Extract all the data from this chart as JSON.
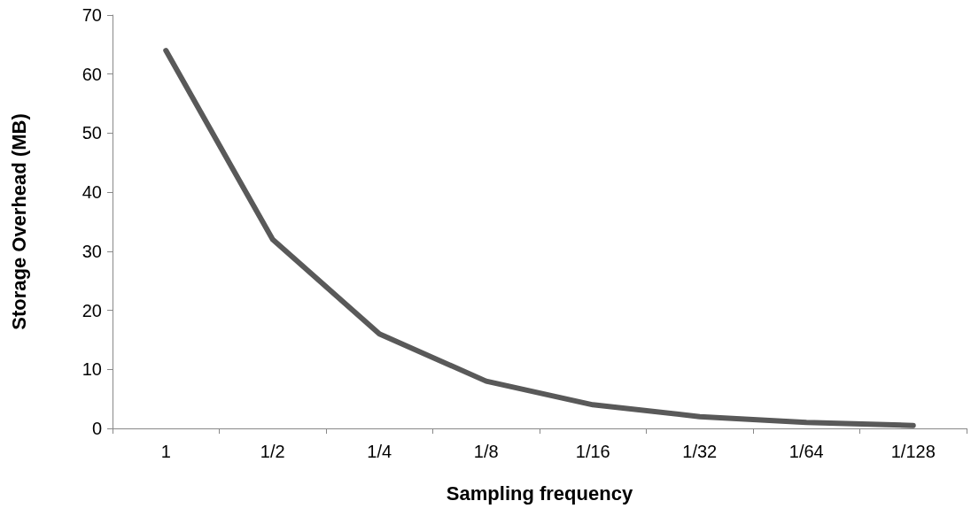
{
  "chart_data": {
    "type": "line",
    "xlabel": "Sampling frequency",
    "ylabel": "Storage Overhead (MB)",
    "categories": [
      "1",
      "1/2",
      "1/4",
      "1/8",
      "1/16",
      "1/32",
      "1/64",
      "1/128"
    ],
    "series": [
      {
        "color": "#595959",
        "values": [
          64,
          32,
          16,
          8,
          4,
          2,
          1,
          0.5
        ]
      }
    ],
    "ylim": [
      0,
      70
    ],
    "yticks": [
      0,
      10,
      20,
      30,
      40,
      50,
      60,
      70
    ],
    "grid": false,
    "marker": "none",
    "line_style": "solid"
  }
}
